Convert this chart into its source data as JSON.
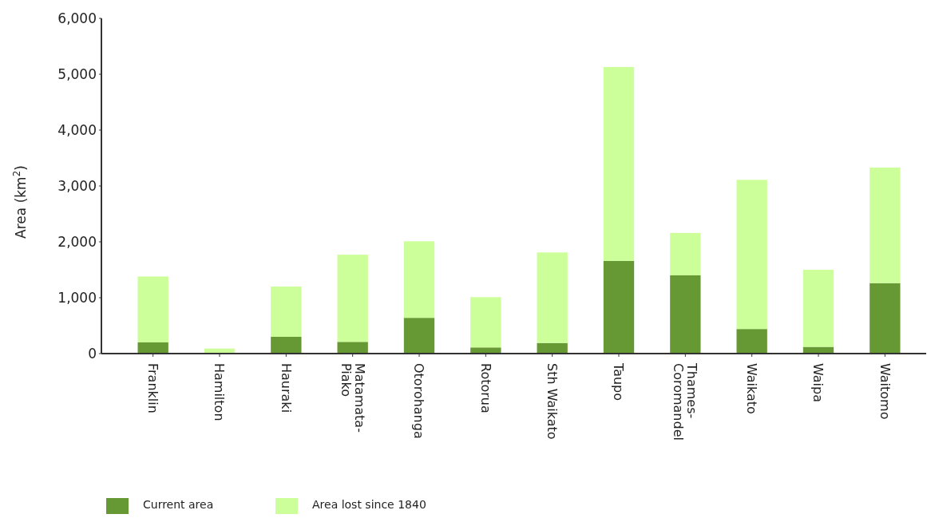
{
  "chart_data": {
    "type": "bar",
    "stacked": true,
    "ylabel": "Area (km$^{2}$)",
    "categories": [
      "Franklin",
      "Hamilton",
      "Hauraki",
      "Matamata-\nPiako",
      "Otorohanga",
      "Rotorua",
      "Sth Waikato",
      "Taupo",
      "Thames-\nCoromandel",
      "Waikato",
      "Waipa",
      "Waitomo"
    ],
    "series": [
      {
        "name": "Current area",
        "color": "#669933",
        "values": [
          200,
          0,
          300,
          210,
          640,
          110,
          190,
          1660,
          1400,
          440,
          120,
          1260
        ]
      },
      {
        "name": "Area lost since 1840",
        "color": "#ccff99",
        "values": [
          1180,
          90,
          900,
          1560,
          1370,
          900,
          1620,
          3470,
          760,
          2670,
          1380,
          2070
        ]
      }
    ],
    "ylim": [
      0,
      6000
    ],
    "yticks": [
      {
        "value": 0,
        "label": "0"
      },
      {
        "value": 1000,
        "label": "1,000"
      },
      {
        "value": 2000,
        "label": "2,000"
      },
      {
        "value": 3000,
        "label": "3,000"
      },
      {
        "value": 4000,
        "label": "4,000"
      },
      {
        "value": 5000,
        "label": "5,000"
      },
      {
        "value": 6000,
        "label": "6,000"
      }
    ],
    "grid": false,
    "legend": "bottom left"
  }
}
